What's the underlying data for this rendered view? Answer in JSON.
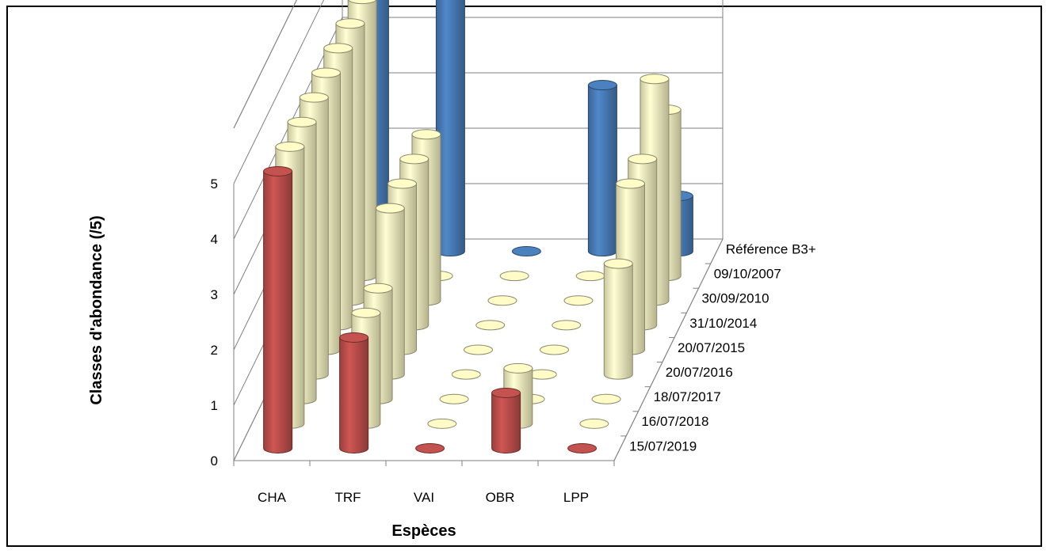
{
  "chart_data": {
    "type": "bar",
    "variant": "3d-cylinder",
    "xlabel": "Espèces",
    "ylabel": "Classes d'abondance  (/5)",
    "categories": [
      "CHA",
      "TRF",
      "VAI",
      "OBR",
      "LPP"
    ],
    "y_ticks": [
      "0",
      "1",
      "2",
      "3",
      "4",
      "5"
    ],
    "ylim": [
      0,
      5
    ],
    "grid": true,
    "series": [
      {
        "name": "Référence B3+",
        "color": "#4a7ebb",
        "values": [
          5,
          5,
          0,
          3,
          1
        ]
      },
      {
        "name": "09/10/2007",
        "color": "#fbf7c4",
        "values": [
          5,
          0,
          0,
          0,
          3
        ]
      },
      {
        "name": "30/09/2010",
        "color": "#fbf7c4",
        "values": [
          5,
          3,
          0,
          0,
          4
        ]
      },
      {
        "name": "31/10/2014",
        "color": "#fbf7c4",
        "values": [
          5,
          3,
          0,
          0,
          3
        ]
      },
      {
        "name": "20/07/2015",
        "color": "#fbf7c4",
        "values": [
          5,
          3,
          0,
          0,
          3
        ]
      },
      {
        "name": "20/07/2016",
        "color": "#fbf7c4",
        "values": [
          5,
          3,
          0,
          0,
          2
        ]
      },
      {
        "name": "18/07/2017",
        "color": "#fbf7c4",
        "values": [
          5,
          2,
          0,
          0,
          0
        ]
      },
      {
        "name": "16/07/2018",
        "color": "#fbf7c4",
        "values": [
          5,
          2,
          0,
          1,
          0
        ]
      },
      {
        "name": "15/07/2019",
        "color": "#c0504d",
        "values": [
          5,
          2,
          0,
          1,
          0
        ]
      }
    ]
  }
}
